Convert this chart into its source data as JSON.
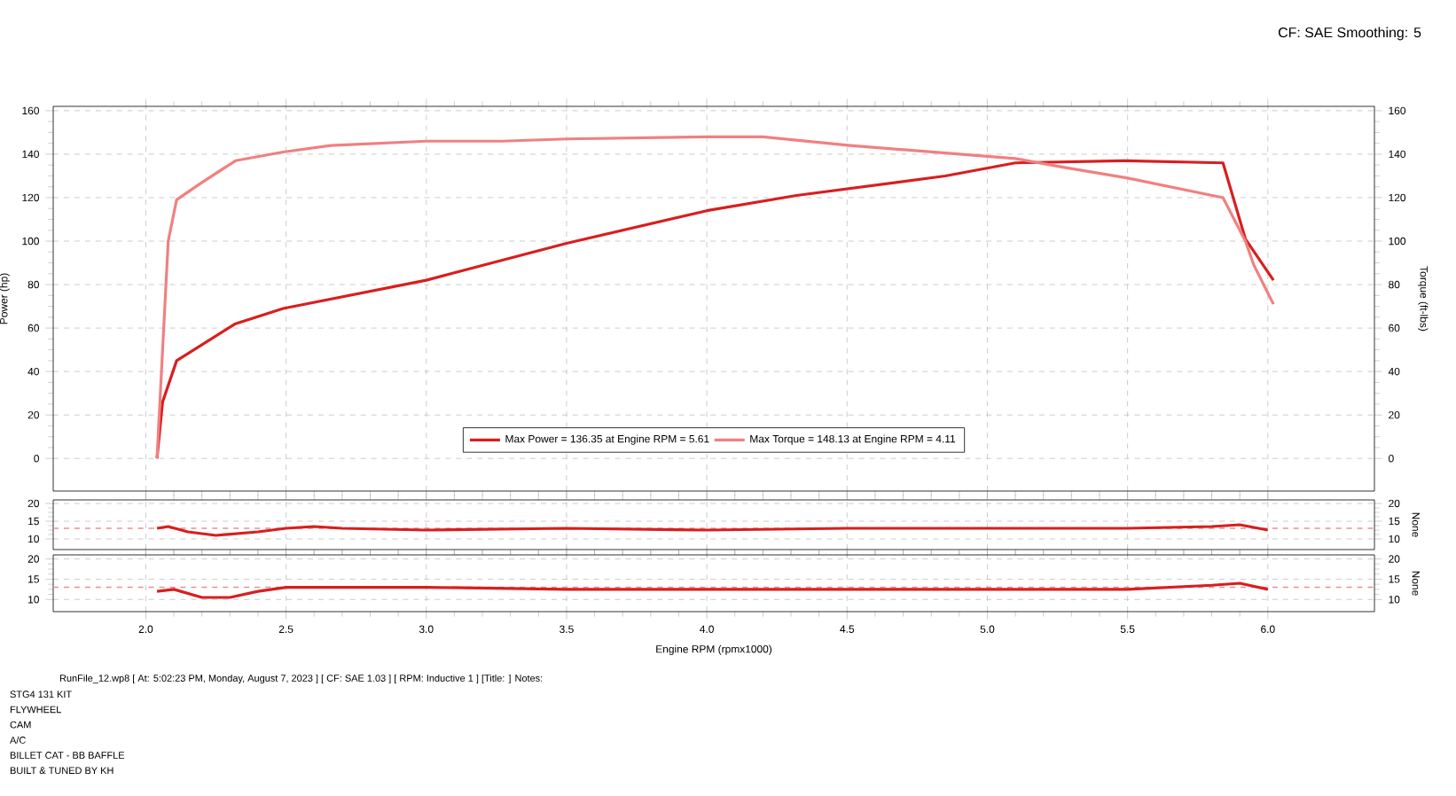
{
  "chart_data": [
    {
      "type": "line",
      "ylabel": "Power (hp)",
      "y2label": "Torque (ft-lbs)",
      "xlim": [
        1.67,
        6.38
      ],
      "ylim": [
        -15,
        162
      ],
      "y2lim": [
        -15,
        162
      ],
      "xticks": [
        {
          "value": 2,
          "label": null
        },
        {
          "value": 2.5,
          "label": null
        },
        {
          "value": 3,
          "label": null
        },
        {
          "value": 3.5,
          "label": null
        },
        {
          "value": 4,
          "label": null
        },
        {
          "value": 4.5,
          "label": null
        },
        {
          "value": 5,
          "label": null
        },
        {
          "value": 5.5,
          "label": null
        },
        {
          "value": 6,
          "label": null
        }
      ],
      "yticks": [
        0,
        20,
        40,
        60,
        80,
        100,
        120,
        140,
        160
      ],
      "y2ticks": [
        0,
        20,
        40,
        60,
        80,
        100,
        120,
        140,
        160
      ],
      "grid": true,
      "legend": "bottom",
      "tick_labels": "y",
      "marker": "none",
      "annotations": [
        "CF: SAE Smoothing: 5"
      ],
      "series": [
        {
          "name": "Max Power = 136.35 at Engine RPM = 5.61",
          "color": "#d91e1e",
          "axis": "y",
          "x": [
            2.04,
            2.06,
            2.11,
            2.32,
            2.49,
            3.0,
            3.5,
            4.0,
            4.32,
            4.85,
            5.1,
            5.48,
            5.84,
            5.92,
            6.02
          ],
          "values": [
            0,
            26,
            45,
            62,
            69,
            82,
            99,
            114,
            121,
            130,
            136,
            137,
            136,
            101,
            82
          ]
        },
        {
          "name": "Max Torque = 148.13 at Engine RPM = 4.11",
          "color": "#f08080",
          "axis": "y2",
          "x": [
            2.04,
            2.08,
            2.11,
            2.2,
            2.32,
            2.49,
            2.66,
            3.0,
            3.27,
            3.5,
            4.0,
            4.2,
            4.51,
            5.0,
            5.1,
            5.27,
            5.5,
            5.84,
            5.92,
            5.95,
            6.02
          ],
          "values": [
            0,
            100,
            119,
            127,
            137,
            141,
            144,
            146,
            146,
            147,
            148,
            148,
            144,
            139,
            138,
            134,
            129,
            120,
            100,
            89,
            71
          ]
        }
      ]
    },
    {
      "type": "line",
      "y2label": "None",
      "xlim": [
        1.67,
        6.38
      ],
      "ylim": [
        7,
        21
      ],
      "y2lim": [
        7,
        21
      ],
      "xticks": [
        {
          "value": 2,
          "label": null
        },
        {
          "value": 2.5,
          "label": null
        },
        {
          "value": 3,
          "label": null
        },
        {
          "value": 3.5,
          "label": null
        },
        {
          "value": 4,
          "label": null
        },
        {
          "value": 4.5,
          "label": null
        },
        {
          "value": 5,
          "label": null
        },
        {
          "value": 5.5,
          "label": null
        },
        {
          "value": 6,
          "label": null
        }
      ],
      "yticks": [
        10,
        15,
        20
      ],
      "y2ticks": [
        10,
        15,
        20
      ],
      "grid": true,
      "tick_labels": "y",
      "marker": "none",
      "ref_lines": [
        {
          "axis": "y",
          "value": 13,
          "color": "#e89090",
          "line_style": "dashed"
        }
      ],
      "series": [
        {
          "color": "#d91e1e",
          "x": [
            2.04,
            2.08,
            2.15,
            2.25,
            2.4,
            2.5,
            2.6,
            2.7,
            3.0,
            3.5,
            4.0,
            4.5,
            5.0,
            5.5,
            5.8,
            5.9,
            6.0
          ],
          "values": [
            13,
            13.5,
            12,
            11,
            12,
            13,
            13.5,
            13,
            12.5,
            13,
            12.5,
            13,
            13,
            13,
            13.5,
            14,
            12.5
          ]
        }
      ]
    },
    {
      "type": "line",
      "xlabel": "Engine RPM (rpmx1000)",
      "y2label": "None",
      "xlim": [
        1.67,
        6.38
      ],
      "ylim": [
        7,
        21
      ],
      "y2lim": [
        7,
        21
      ],
      "xticks": [
        {
          "value": 2,
          "label": "2.0"
        },
        {
          "value": 2.5,
          "label": "2.5"
        },
        {
          "value": 3,
          "label": "3.0"
        },
        {
          "value": 3.5,
          "label": "3.5"
        },
        {
          "value": 4,
          "label": "4.0"
        },
        {
          "value": 4.5,
          "label": "4.5"
        },
        {
          "value": 5,
          "label": "5.0"
        },
        {
          "value": 5.5,
          "label": "5.5"
        },
        {
          "value": 6,
          "label": "6.0"
        }
      ],
      "yticks": [
        10,
        15,
        20
      ],
      "y2ticks": [
        10,
        15,
        20
      ],
      "grid": true,
      "marker": "none",
      "ref_lines": [
        {
          "axis": "y",
          "value": 13,
          "color": "#e89090",
          "line_style": "dashed"
        }
      ],
      "annotations": [
        "RunFile_12.wp8 [ At: 5:02:23 PM, Monday, August 7, 2023 ] [ CF: SAE 1.03 ] [ RPM: Inductive 1 ] [Title: ] Notes:",
        "STG4 131 KIT",
        "FLYWHEEL",
        "CAM",
        "A/C",
        "BILLET CAT - BB BAFFLE",
        "BUILT & TUNED BY KH"
      ],
      "series": [
        {
          "color": "#d91e1e",
          "x": [
            2.04,
            2.1,
            2.2,
            2.3,
            2.4,
            2.5,
            3.0,
            3.5,
            4.0,
            4.5,
            5.0,
            5.5,
            5.8,
            5.9,
            6.0
          ],
          "values": [
            12,
            12.5,
            10.5,
            10.5,
            12,
            13,
            13,
            12.5,
            12.5,
            12.5,
            12.5,
            12.5,
            13.5,
            14,
            12.5
          ]
        }
      ]
    }
  ]
}
